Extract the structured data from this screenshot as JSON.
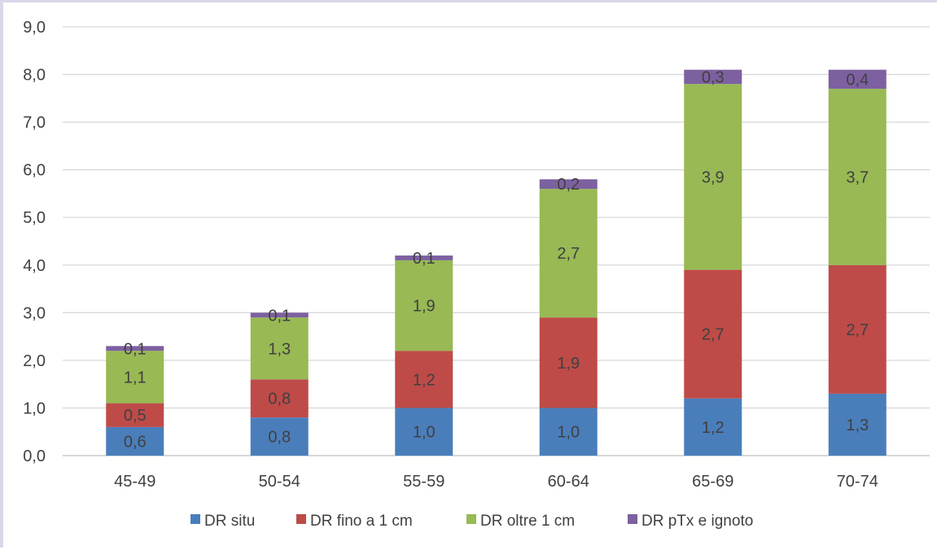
{
  "chart_data": {
    "type": "bar",
    "stacked": true,
    "categories": [
      "45-49",
      "50-54",
      "55-59",
      "60-64",
      "65-69",
      "70-74"
    ],
    "series": [
      {
        "name": "DR situ",
        "color": "#4a7ebb",
        "values": [
          0.6,
          0.8,
          1.0,
          1.0,
          1.2,
          1.3
        ],
        "labels": [
          "0,6",
          "0,8",
          "1,0",
          "1,0",
          "1,2",
          "1,3"
        ]
      },
      {
        "name": "DR fino a 1 cm",
        "color": "#be4b48",
        "values": [
          0.5,
          0.8,
          1.2,
          1.9,
          2.7,
          2.7
        ],
        "labels": [
          "0,5",
          "0,8",
          "1,2",
          "1,9",
          "2,7",
          "2,7"
        ]
      },
      {
        "name": "DR oltre 1 cm",
        "color": "#98b954",
        "values": [
          1.1,
          1.3,
          1.9,
          2.7,
          3.9,
          3.7
        ],
        "labels": [
          "1,1",
          "1,3",
          "1,9",
          "2,7",
          "3,9",
          "3,7"
        ]
      },
      {
        "name": "DR pTx e ignoto",
        "color": "#7d60a0",
        "values": [
          0.1,
          0.1,
          0.1,
          0.2,
          0.3,
          0.4
        ],
        "labels": [
          "0,1",
          "0,1",
          "0,1",
          "0,2",
          "0,3",
          "0,4"
        ]
      }
    ],
    "ylim": [
      0,
      9
    ],
    "y_ticks": [
      "0,0",
      "1,0",
      "2,0",
      "3,0",
      "4,0",
      "5,0",
      "6,0",
      "7,0",
      "8,0",
      "9,0"
    ],
    "grid": true,
    "legend_position": "bottom",
    "title": "",
    "xlabel": "",
    "ylabel": ""
  }
}
